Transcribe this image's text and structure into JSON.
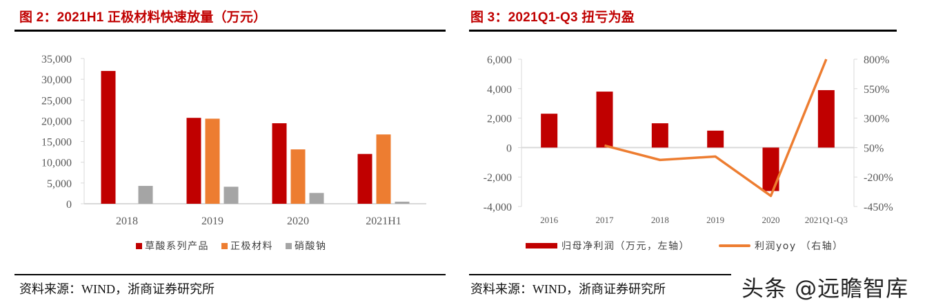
{
  "colors": {
    "title_red": "#c00000",
    "bar_red": "#c00000",
    "bar_orange": "#ed7d31",
    "bar_gray": "#a5a5a5",
    "line_orange": "#ed7d31",
    "axis_gray": "#d9d9d9"
  },
  "left_panel": {
    "title": "图 2：2021H1 正极材料快速放量（万元）",
    "source": "资料来源：WIND，浙商证券研究所",
    "legend": [
      "草酸系列产品",
      "正极材料",
      "硝酸钠"
    ]
  },
  "right_panel": {
    "title": "图 3：2021Q1-Q3 扭亏为盈",
    "source": "资料来源：WIND，浙商证券研究所",
    "legend": [
      "归母净利润（万元，左轴）",
      "利润yoy （右轴）"
    ]
  },
  "watermark": "头条 @远瞻智库",
  "chart_data": [
    {
      "type": "bar",
      "title": "图 2：2021H1 正极材料快速放量（万元）",
      "xlabel": "",
      "ylabel": "万元",
      "categories": [
        "2018",
        "2019",
        "2020",
        "2021H1"
      ],
      "series": [
        {
          "name": "草酸系列产品",
          "color": "#c00000",
          "values": [
            32000,
            20700,
            19400,
            12000
          ]
        },
        {
          "name": "正极材料",
          "color": "#ed7d31",
          "values": [
            0,
            20500,
            13100,
            16700
          ]
        },
        {
          "name": "硝酸钠",
          "color": "#a5a5a5",
          "values": [
            4300,
            4100,
            2600,
            500
          ]
        }
      ],
      "ylim": [
        0,
        35000
      ],
      "yticks": [
        0,
        5000,
        10000,
        15000,
        20000,
        25000,
        30000,
        35000
      ],
      "ytick_labels": [
        "0",
        "5,000",
        "10,000",
        "15,000",
        "20,000",
        "25,000",
        "30,000",
        "35,000"
      ],
      "grid": false,
      "legend_position": "bottom"
    },
    {
      "type": "bar+line",
      "title": "图 3：2021Q1-Q3 扭亏为盈",
      "categories": [
        "2016",
        "2017",
        "2018",
        "2019",
        "2020",
        "2021Q1-Q3"
      ],
      "series": [
        {
          "name": "归母净利润（万元，左轴）",
          "type": "bar",
          "axis": "left",
          "color": "#c00000",
          "values": [
            2300,
            3800,
            1650,
            1150,
            -2950,
            3900
          ]
        },
        {
          "name": "利润yoy （右轴）",
          "type": "line",
          "axis": "right",
          "color": "#ed7d31",
          "values": [
            null,
            67,
            -55,
            -26,
            -360,
            800
          ]
        }
      ],
      "ylim_left": [
        -4000,
        6000
      ],
      "yticks_left": [
        -4000,
        -2000,
        0,
        2000,
        4000,
        6000
      ],
      "ytick_labels_left": [
        "-4,000",
        "-2,000",
        "0",
        "2,000",
        "4,000",
        "6,000"
      ],
      "ylim_right": [
        -450,
        800
      ],
      "yticks_right": [
        -450,
        -200,
        50,
        300,
        550,
        800
      ],
      "ytick_labels_right": [
        "-450%",
        "-200%",
        "50%",
        "300%",
        "550%",
        "800%"
      ],
      "grid": false,
      "legend_position": "bottom"
    }
  ]
}
